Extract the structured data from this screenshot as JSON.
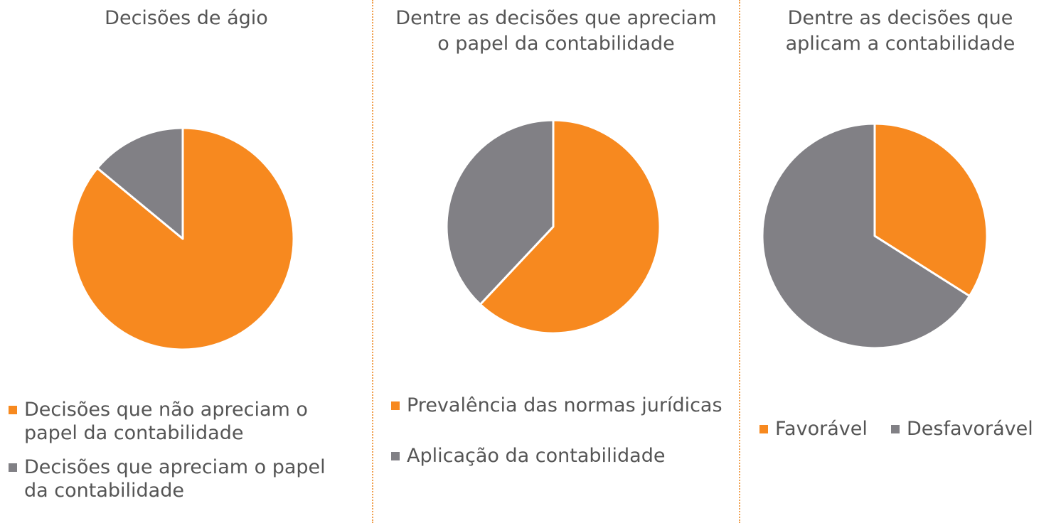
{
  "chart_data": [
    {
      "type": "pie",
      "title": "Decisões de ágio",
      "categories": [
        "Decisões que não apreciam o papel da contabilidade",
        "Decisões que apreciam o papel da contabilidade"
      ],
      "values": [
        86,
        14
      ],
      "legend": {
        "items": [
          {
            "lines": [
              "Decisões que não apreciam o",
              "papel da contabilidade"
            ],
            "color": "#f7891f"
          },
          {
            "lines": [
              "Decisões que apreciam o papel",
              "da contabilidade"
            ],
            "color": "#818085"
          }
        ]
      }
    },
    {
      "type": "pie",
      "title": "Dentre as decisões que apreciam\no papel da contabilidade",
      "categories": [
        "Prevalência das normas jurídicas",
        "Aplicação da contabilidade"
      ],
      "values": [
        62,
        38
      ],
      "legend": {
        "items": [
          {
            "lines": [
              "Prevalência das normas jurídicas"
            ],
            "color": "#f7891f"
          },
          {
            "lines": [
              "Aplicação da contabilidade"
            ],
            "color": "#818085"
          }
        ]
      }
    },
    {
      "type": "pie",
      "title": "Dentre as decisões que\naplicam a contabilidade",
      "categories": [
        "Favorável",
        "Desfavorável"
      ],
      "values": [
        34,
        66
      ],
      "legend": {
        "items": [
          {
            "lines": [
              "Favorável"
            ],
            "color": "#f7891f"
          },
          {
            "lines": [
              "Desfavorável"
            ],
            "color": "#818085"
          }
        ]
      }
    }
  ]
}
